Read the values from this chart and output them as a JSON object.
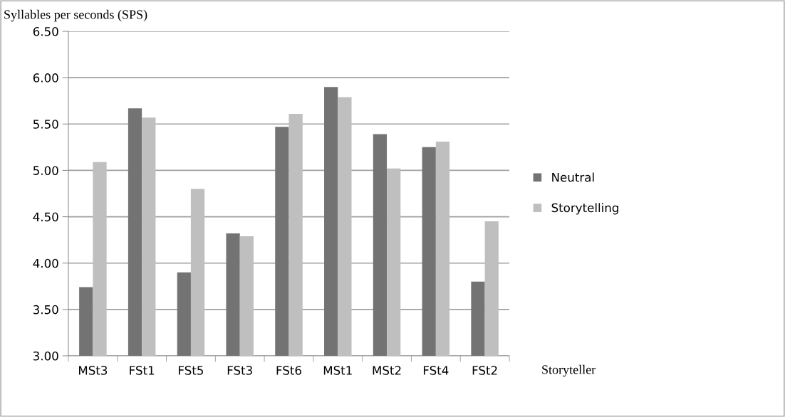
{
  "chart_data": {
    "type": "bar",
    "ylabel": "Syllables per seconds (SPS)",
    "xlabel": "Storyteller",
    "categories": [
      "MSt3",
      "FSt1",
      "FSt5",
      "FSt3",
      "FSt6",
      "MSt1",
      "MSt2",
      "FSt4",
      "FSt2"
    ],
    "series": [
      {
        "name": "Neutral",
        "color": "#737373",
        "values": [
          3.74,
          5.67,
          3.9,
          4.32,
          5.47,
          5.9,
          5.39,
          5.25,
          3.8
        ]
      },
      {
        "name": "Storytelling",
        "color": "#bfbfbf",
        "values": [
          5.09,
          5.57,
          4.8,
          4.29,
          5.61,
          5.79,
          5.02,
          5.31,
          4.45
        ]
      }
    ],
    "ylim": [
      3.0,
      6.5
    ],
    "yticks": [
      {
        "value": 3.0,
        "label": "3.00"
      },
      {
        "value": 3.5,
        "label": "3.50"
      },
      {
        "value": 4.0,
        "label": "4.00"
      },
      {
        "value": 4.5,
        "label": "4.50"
      },
      {
        "value": 5.0,
        "label": "5.00"
      },
      {
        "value": 5.5,
        "label": "5.50"
      },
      {
        "value": 6.0,
        "label": "6.00"
      },
      {
        "value": 6.5,
        "label": "6.50"
      }
    ],
    "grid": "y",
    "legend": "right"
  }
}
